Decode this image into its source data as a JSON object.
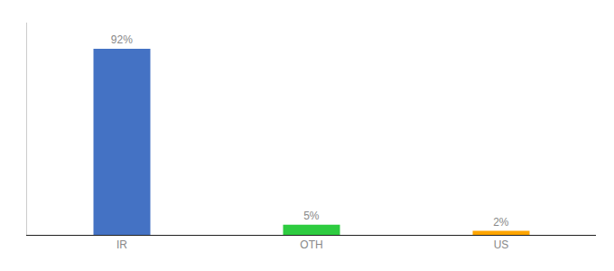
{
  "chart_data": {
    "type": "bar",
    "categories": [
      "IR",
      "OTH",
      "US"
    ],
    "values": [
      92,
      5,
      2
    ],
    "value_labels": [
      "92%",
      "5%",
      "2%"
    ],
    "colors": [
      "#4472C4",
      "#2ECC40",
      "#FFA500"
    ],
    "ylim": [
      0,
      105
    ],
    "grid": false,
    "data_labels": true,
    "tick_labels": "x"
  }
}
